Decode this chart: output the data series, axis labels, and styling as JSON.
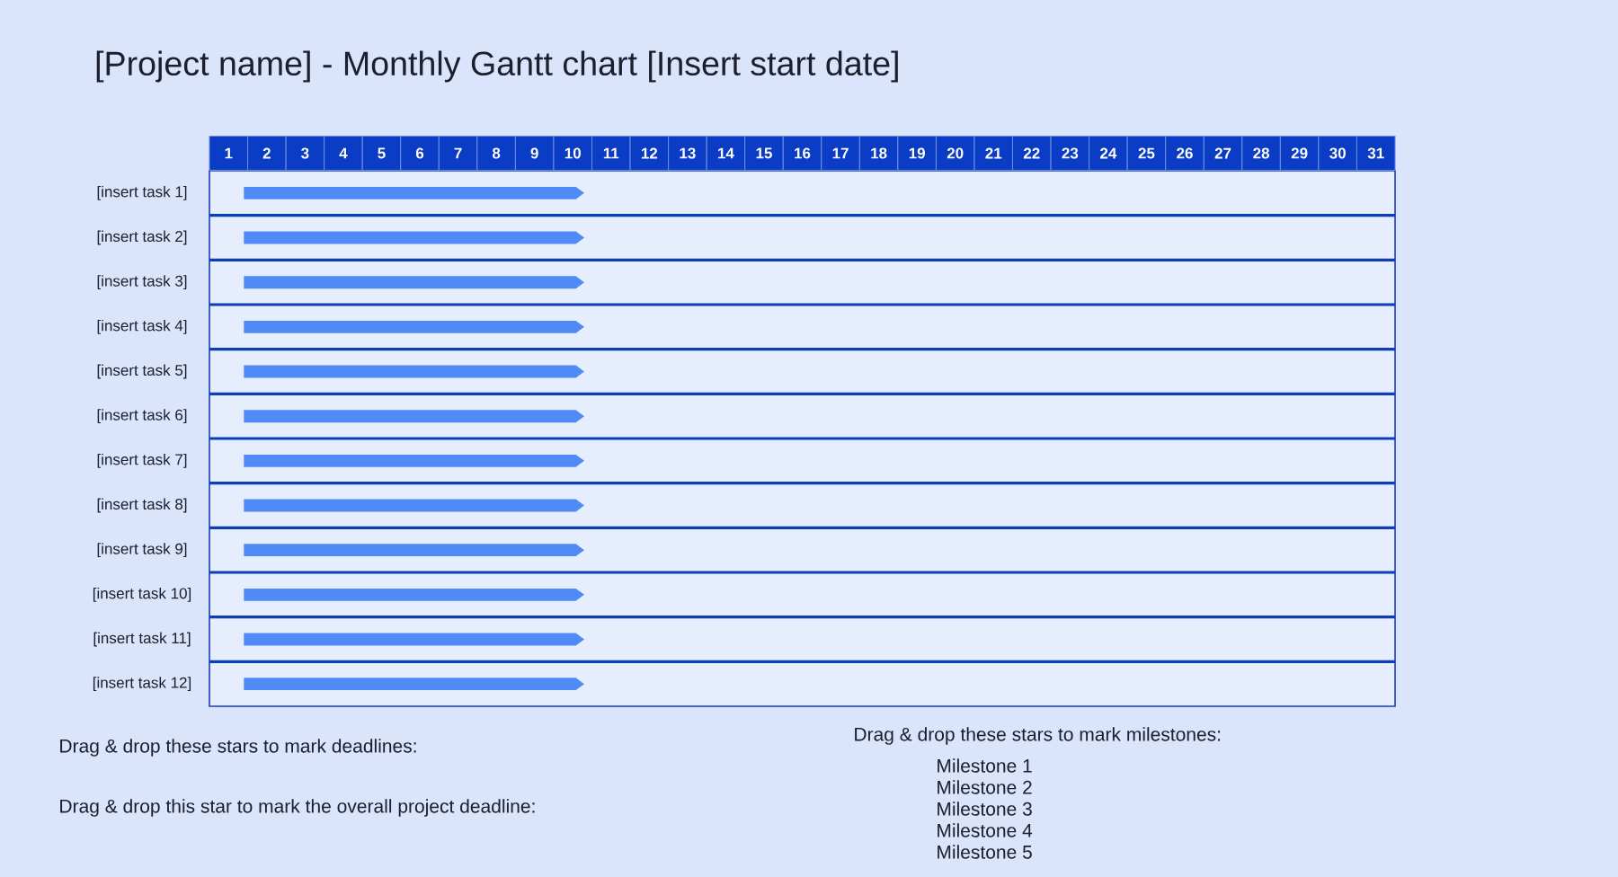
{
  "chart_data": {
    "type": "bar",
    "orientation": "horizontal",
    "title": "[Project name] - Monthly Gantt chart [Insert start date]",
    "categories": [
      "[insert task 1]",
      "[insert task 2]",
      "[insert task 3]",
      "[insert task 4]",
      "[insert task 5]",
      "[insert task 6]",
      "[insert task 7]",
      "[insert task 8]",
      "[insert task 9]",
      "[insert task 10]",
      "[insert task 11]",
      "[insert task 12]"
    ],
    "base": [
      1.4,
      1.4,
      1.4,
      1.4,
      1.4,
      1.4,
      1.4,
      1.4,
      1.4,
      1.4,
      1.4,
      1.4
    ],
    "values": [
      8.9,
      8.9,
      8.9,
      8.9,
      8.9,
      8.9,
      8.9,
      8.9,
      8.9,
      8.9,
      8.9,
      8.9
    ],
    "color": "#4f8af7",
    "xlim": [
      0.5,
      31.5
    ],
    "xticks": [
      1,
      2,
      3,
      4,
      5,
      6,
      7,
      8,
      9,
      10,
      11,
      12,
      13,
      14,
      15,
      16,
      17,
      18,
      19,
      20,
      21,
      22,
      23,
      24,
      25,
      26,
      27,
      28,
      29,
      30,
      31
    ],
    "grid": "y",
    "annotations": [
      "Drag & drop these stars to mark deadlines:",
      "Drag & drop this star to mark the overall project deadline:",
      "Drag & drop these stars to mark milestones:",
      "Milestone 1",
      "Milestone 2",
      "Milestone 3",
      "Milestone 4",
      "Milestone 5"
    ]
  }
}
